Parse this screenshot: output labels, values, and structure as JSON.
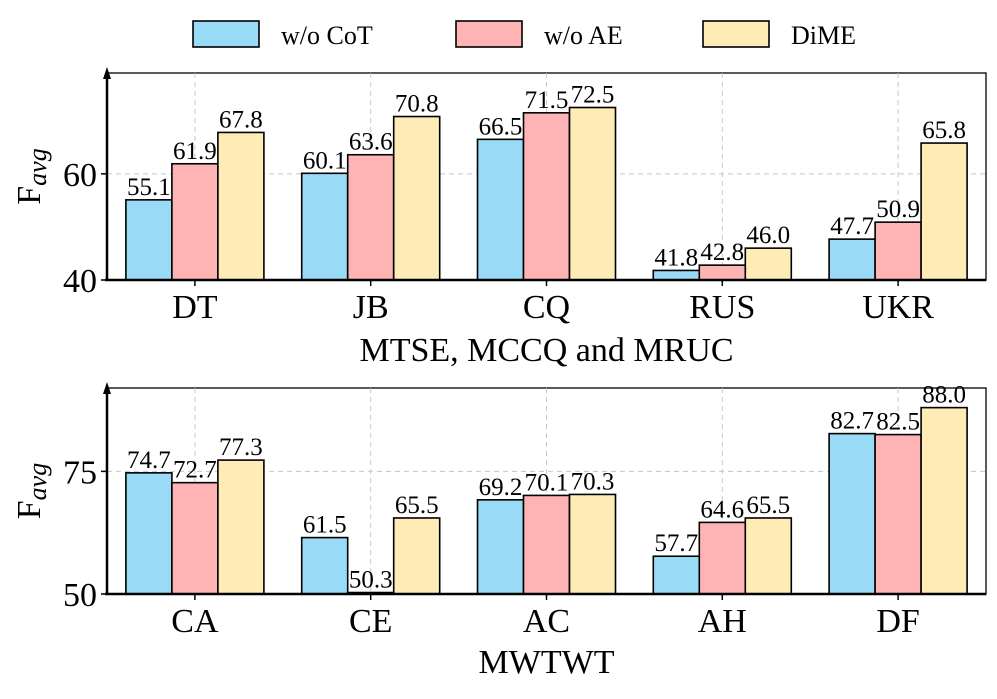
{
  "legend": [
    {
      "name": "w/o CoT",
      "color": "#99dbf7"
    },
    {
      "name": "w/o AE",
      "color": "#feb3b5"
    },
    {
      "name": "DiME",
      "color": "#feebb6"
    }
  ],
  "chart_data": [
    {
      "type": "bar",
      "title": "",
      "xlabel": "MTSE, MCCQ and MRUC",
      "ylabel": "F",
      "ylabel_sub": "avg",
      "ylim": [
        40,
        79
      ],
      "yticks": [
        40,
        60
      ],
      "grid": true,
      "categories": [
        "DT",
        "JB",
        "CQ",
        "RUS",
        "UKR"
      ],
      "series": [
        {
          "name": "w/o CoT",
          "values": [
            55.1,
            60.1,
            66.5,
            41.8,
            47.7
          ],
          "labels": [
            "55.1",
            "60.1",
            "66.5",
            "41.8",
            "47.7"
          ]
        },
        {
          "name": "w/o AE",
          "values": [
            61.9,
            63.6,
            71.5,
            42.8,
            50.9
          ],
          "labels": [
            "61.9",
            "63.6",
            "71.5",
            "42.8",
            "50.9"
          ]
        },
        {
          "name": "DiME",
          "values": [
            67.8,
            70.8,
            72.5,
            46.0,
            65.8
          ],
          "labels": [
            "67.8",
            "70.8",
            "72.5",
            "46.0",
            "65.8"
          ]
        }
      ]
    },
    {
      "type": "bar",
      "title": "",
      "xlabel": "MWTWT",
      "ylabel": "F",
      "ylabel_sub": "avg",
      "ylim": [
        50,
        92
      ],
      "yticks": [
        50,
        75
      ],
      "grid": true,
      "categories": [
        "CA",
        "CE",
        "AC",
        "AH",
        "DF"
      ],
      "series": [
        {
          "name": "w/o CoT",
          "values": [
            74.7,
            61.5,
            69.2,
            57.7,
            82.7
          ],
          "labels": [
            "74.7",
            "61.5",
            "69.2",
            "57.7",
            "82.7"
          ]
        },
        {
          "name": "w/o AE",
          "values": [
            72.7,
            50.3,
            70.1,
            64.6,
            82.5
          ],
          "labels": [
            "72.7",
            "50.3",
            "70.1",
            "64.6",
            "82.5"
          ]
        },
        {
          "name": "DiME",
          "values": [
            77.3,
            65.5,
            70.3,
            65.5,
            88.0
          ],
          "labels": [
            "77.3",
            "65.5",
            "70.3",
            "65.5",
            "88.0"
          ]
        }
      ]
    }
  ]
}
